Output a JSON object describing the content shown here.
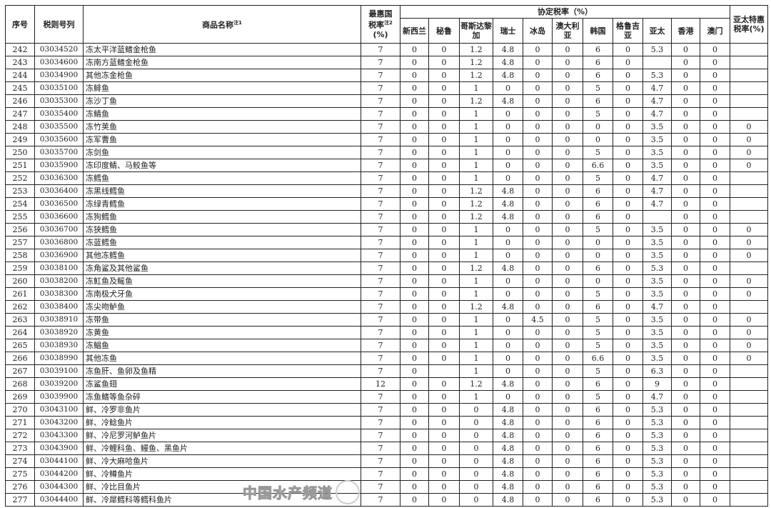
{
  "header": {
    "seq": "序号",
    "code": "税则号列",
    "name": "商品名称",
    "name_note": "注1",
    "mfn_a": "最惠国",
    "mfn_b": "税率",
    "mfn_note": "注2",
    "mfn_unit": "(%)",
    "agreement": "协定税率（%）",
    "countries": [
      "新西兰",
      "秘鲁",
      "哥斯达黎加",
      "瑞士",
      "冰岛",
      "澳大利亚",
      "韩国",
      "格鲁吉亚",
      "亚太",
      "香港",
      "澳门"
    ],
    "apta_special": "亚太特惠税率(%)"
  },
  "rows": [
    [
      "242",
      "03034520",
      "冻太平洋蓝鳍金枪鱼",
      "7",
      "0",
      "0",
      "1.2",
      "4.8",
      "0",
      "0",
      "6",
      "0",
      "5.3",
      "0",
      "0",
      ""
    ],
    [
      "243",
      "03034600",
      "冻南方蓝鳍金枪鱼",
      "7",
      "0",
      "0",
      "1.2",
      "4.8",
      "0",
      "0",
      "6",
      "0",
      "",
      "0",
      "0",
      ""
    ],
    [
      "244",
      "03034900",
      "其他冻金枪鱼",
      "7",
      "0",
      "0",
      "1.2",
      "4.8",
      "0",
      "0",
      "6",
      "0",
      "5.3",
      "0",
      "0",
      ""
    ],
    [
      "245",
      "03035100",
      "冻鲱鱼",
      "7",
      "0",
      "0",
      "1",
      "0",
      "0",
      "0",
      "5",
      "0",
      "4.7",
      "0",
      "0",
      ""
    ],
    [
      "246",
      "03035300",
      "冻沙丁鱼",
      "7",
      "0",
      "0",
      "1.2",
      "4.8",
      "0",
      "0",
      "6",
      "0",
      "4.7",
      "0",
      "0",
      ""
    ],
    [
      "247",
      "03035400",
      "冻鲭鱼",
      "7",
      "0",
      "0",
      "1",
      "0",
      "0",
      "0",
      "5",
      "0",
      "4.7",
      "0",
      "0",
      ""
    ],
    [
      "248",
      "03035500",
      "冻竹荚鱼",
      "7",
      "0",
      "0",
      "1",
      "0",
      "0",
      "0",
      "0",
      "0",
      "3.5",
      "0",
      "0",
      "0"
    ],
    [
      "249",
      "03035600",
      "冻军曹鱼",
      "7",
      "0",
      "0",
      "1",
      "0",
      "0",
      "0",
      "0",
      "0",
      "3.5",
      "0",
      "0",
      "0"
    ],
    [
      "250",
      "03035700",
      "冻剑鱼",
      "7",
      "0",
      "0",
      "1",
      "0",
      "0",
      "0",
      "5",
      "0",
      "3.5",
      "0",
      "0",
      "0"
    ],
    [
      "251",
      "03035900",
      "冻印度鲭、马鲛鱼等",
      "7",
      "0",
      "0",
      "1",
      "0",
      "0",
      "0",
      "6.6",
      "0",
      "3.5",
      "0",
      "0",
      "0"
    ],
    [
      "252",
      "03036300",
      "冻鳕鱼",
      "7",
      "0",
      "0",
      "1",
      "0",
      "0",
      "0",
      "5",
      "0",
      "4.7",
      "0",
      "0",
      ""
    ],
    [
      "253",
      "03036400",
      "冻黑线鳕鱼",
      "7",
      "0",
      "0",
      "1.2",
      "4.8",
      "0",
      "0",
      "6",
      "0",
      "4.7",
      "0",
      "0",
      ""
    ],
    [
      "254",
      "03036500",
      "冻绿青鳕鱼",
      "7",
      "0",
      "0",
      "1.2",
      "4.8",
      "0",
      "0",
      "6",
      "0",
      "4.7",
      "0",
      "0",
      ""
    ],
    [
      "255",
      "03036600",
      "冻狗鳕鱼",
      "7",
      "0",
      "0",
      "1.2",
      "4.8",
      "0",
      "0",
      "6",
      "0",
      "",
      "0",
      "0",
      ""
    ],
    [
      "256",
      "03036700",
      "冻狭鳕鱼",
      "7",
      "0",
      "0",
      "1",
      "0",
      "0",
      "0",
      "5",
      "0",
      "3.5",
      "0",
      "0",
      "0"
    ],
    [
      "257",
      "03036800",
      "冻蓝鳕鱼",
      "7",
      "0",
      "0",
      "1",
      "0",
      "0",
      "0",
      "0",
      "0",
      "3.5",
      "0",
      "0",
      "0"
    ],
    [
      "258",
      "03036900",
      "其他冻鳕鱼",
      "7",
      "0",
      "0",
      "1",
      "0",
      "0",
      "0",
      "0",
      "0",
      "3.5",
      "0",
      "0",
      "0"
    ],
    [
      "259",
      "03038100",
      "冻角鲨及其他鲨鱼",
      "7",
      "0",
      "0",
      "1.2",
      "4.8",
      "0",
      "0",
      "6",
      "0",
      "5.3",
      "0",
      "0",
      ""
    ],
    [
      "260",
      "03038200",
      "冻魟鱼及鳐鱼",
      "7",
      "0",
      "0",
      "1",
      "0",
      "0",
      "0",
      "0",
      "0",
      "3.5",
      "0",
      "0",
      "0"
    ],
    [
      "261",
      "03038300",
      "冻南极犬牙鱼",
      "7",
      "0",
      "0",
      "1",
      "0",
      "0",
      "0",
      "5",
      "0",
      "3.5",
      "0",
      "0",
      "0"
    ],
    [
      "262",
      "03038400",
      "冻尖吻鲈鱼",
      "7",
      "0",
      "0",
      "1.2",
      "4.8",
      "0",
      "0",
      "6",
      "0",
      "4.7",
      "0",
      "0",
      ""
    ],
    [
      "263",
      "03038910",
      "冻带鱼",
      "7",
      "0",
      "0",
      "1",
      "0",
      "4.5",
      "0",
      "5",
      "0",
      "3.5",
      "0",
      "0",
      "0"
    ],
    [
      "264",
      "03038920",
      "冻黄鱼",
      "7",
      "0",
      "0",
      "1",
      "0",
      "0",
      "0",
      "5",
      "0",
      "3.5",
      "0",
      "0",
      "0"
    ],
    [
      "265",
      "03038930",
      "冻鲳鱼",
      "7",
      "0",
      "0",
      "1",
      "0",
      "0",
      "0",
      "5",
      "0",
      "3.5",
      "0",
      "0",
      "0"
    ],
    [
      "266",
      "03038990",
      "其他冻鱼",
      "7",
      "0",
      "0",
      "1",
      "0",
      "0",
      "0",
      "6.6",
      "0",
      "3.5",
      "0",
      "0",
      "0"
    ],
    [
      "267",
      "03039100",
      "冻鱼肝、鱼卵及鱼精",
      "7",
      "0",
      "",
      "1",
      "0",
      "0",
      "0",
      "5",
      "0",
      "6.3",
      "0",
      "0",
      ""
    ],
    [
      "268",
      "03039200",
      "冻鲨鱼翅",
      "12",
      "0",
      "0",
      "1.2",
      "4.8",
      "0",
      "0",
      "6",
      "0",
      "9",
      "0",
      "0",
      ""
    ],
    [
      "269",
      "03039900",
      "冻鱼鳍等鱼杂碎",
      "7",
      "0",
      "0",
      "1",
      "0",
      "0",
      "0",
      "5",
      "0",
      "4.7",
      "0",
      "0",
      ""
    ],
    [
      "270",
      "03043100",
      "鲜、冷罗非鱼片",
      "7",
      "0",
      "0",
      "0",
      "4.8",
      "0",
      "0",
      "6",
      "0",
      "5.3",
      "0",
      "0",
      ""
    ],
    [
      "271",
      "03043200",
      "鲜、冷鲶鱼片",
      "7",
      "0",
      "0",
      "0",
      "4.8",
      "0",
      "0",
      "6",
      "0",
      "5.3",
      "0",
      "0",
      ""
    ],
    [
      "272",
      "03043300",
      "鲜、冷尼罗河鲈鱼片",
      "7",
      "0",
      "0",
      "0",
      "4.8",
      "0",
      "0",
      "6",
      "0",
      "5.3",
      "0",
      "0",
      ""
    ],
    [
      "273",
      "03043900",
      "鲜、冷鲤科鱼、鳗鱼、黑鱼片",
      "7",
      "0",
      "0",
      "0",
      "4.8",
      "0",
      "0",
      "6",
      "0",
      "5.3",
      "0",
      "0",
      ""
    ],
    [
      "274",
      "03044100",
      "鲜、冷大麻哈鱼片",
      "7",
      "0",
      "0",
      "0",
      "4.8",
      "0",
      "0",
      "6",
      "0",
      "5.3",
      "0",
      "0",
      ""
    ],
    [
      "275",
      "03044200",
      "鲜、冷鳟鱼片",
      "7",
      "0",
      "0",
      "0",
      "4.8",
      "0",
      "0",
      "6",
      "0",
      "5.3",
      "0",
      "0",
      ""
    ],
    [
      "276",
      "03044300",
      "鲜、冷比目鱼片",
      "7",
      "0",
      "0",
      "0",
      "4.8",
      "0",
      "0",
      "6",
      "0",
      "5.3",
      "0",
      "0",
      ""
    ],
    [
      "277",
      "03044400",
      "鲜、冷犀鳕科等鳕科鱼片",
      "7",
      "0",
      "0",
      "0",
      "4.8",
      "0",
      "0",
      "6",
      "0",
      "5.3",
      "0",
      "0",
      ""
    ]
  ],
  "watermark": "中国水产频道"
}
